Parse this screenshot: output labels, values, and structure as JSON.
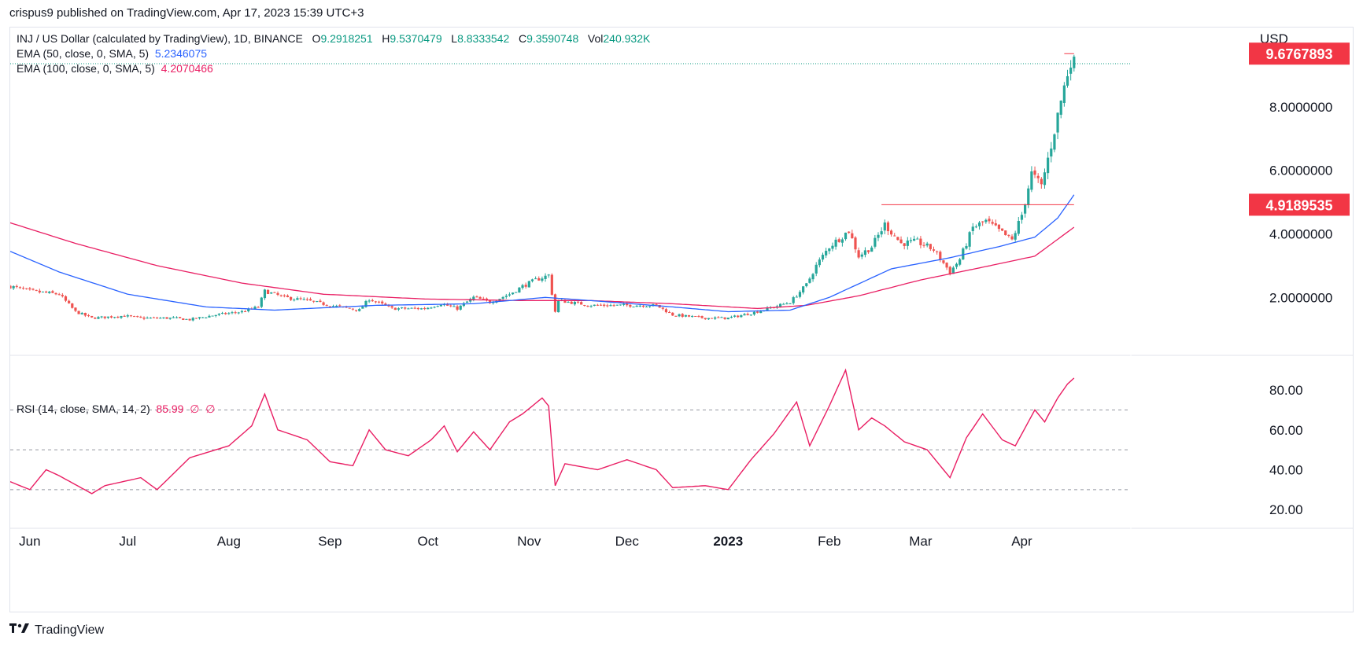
{
  "header": {
    "text": "crispus9 published on TradingView.com, Apr 17, 2023 15:39 UTC+3"
  },
  "footer": {
    "brand": "TradingView"
  },
  "main_legend": {
    "symbol": "INJ / US Dollar (calculated by TradingView), 1D, BINANCE",
    "o_label": "O",
    "o": "9.2918251",
    "h_label": "H",
    "h": "9.5370479",
    "l_label": "L",
    "l": "8.8333542",
    "c_label": "C",
    "c": "9.3590748",
    "vol_label": "Vol",
    "vol": "240.932K"
  },
  "ema50_legend": {
    "label": "EMA (50, close, 0, SMA, 5)",
    "value": "5.2346075"
  },
  "ema100_legend": {
    "label": "EMA (100, close, 0, SMA, 5)",
    "value": "4.2070466"
  },
  "rsi_legend": {
    "label": "RSI (14, close, SMA, 14, 2)",
    "value": "85.99",
    "extra1": "∅",
    "extra2": "∅"
  },
  "colors": {
    "up": "#26a69a",
    "down": "#ef5350",
    "ema50": "#2962ff",
    "ema100": "#e91e63",
    "rsi": "#e91e63",
    "label_bg": "#f23645",
    "guide": "#f23645"
  },
  "chart_data": [
    {
      "type": "candlestick",
      "title": "INJ / US Dollar (calculated by TradingView), 1D, BINANCE",
      "y_axis_label": "USD",
      "y_ticks": [
        "2.0000000",
        "4.0000000",
        "6.0000000",
        "8.0000000"
      ],
      "y_tick_values": [
        2,
        4,
        6,
        8
      ],
      "ylim": [
        0.2,
        10.5
      ],
      "x_ticks": [
        "Jun",
        "Jul",
        "Aug",
        "Sep",
        "Oct",
        "Nov",
        "Dec",
        "2023",
        "Feb",
        "Mar",
        "Apr"
      ],
      "x_tick_dates": [
        "2022-06-01",
        "2022-07-01",
        "2022-08-01",
        "2022-09-01",
        "2022-10-01",
        "2022-11-01",
        "2022-12-01",
        "2023-01-01",
        "2023-02-01",
        "2023-03-01",
        "2023-04-01"
      ],
      "x_range": [
        "2022-05-26",
        "2023-05-02"
      ],
      "price_labels": [
        {
          "text": "9.6767893",
          "value": 9.6767893
        },
        {
          "text": "4.9189535",
          "value": 4.9189535
        }
      ],
      "resistance_line": {
        "from": "2023-02-17",
        "to": "2023-04-17",
        "value": 4.9189535
      },
      "peak_line": {
        "from": "2023-04-14",
        "to": "2023-04-17",
        "value": 9.6767893
      },
      "close_keypoints": [
        [
          "2022-05-26",
          2.35
        ],
        [
          "2022-06-01",
          2.2
        ],
        [
          "2022-06-10",
          2.1
        ],
        [
          "2022-06-15",
          1.55
        ],
        [
          "2022-06-20",
          1.35
        ],
        [
          "2022-06-30",
          1.42
        ],
        [
          "2022-07-05",
          1.35
        ],
        [
          "2022-07-15",
          1.35
        ],
        [
          "2022-07-20",
          1.3
        ],
        [
          "2022-07-28",
          1.45
        ],
        [
          "2022-08-05",
          1.55
        ],
        [
          "2022-08-10",
          1.7
        ],
        [
          "2022-08-12",
          2.2
        ],
        [
          "2022-08-18",
          2.0
        ],
        [
          "2022-08-25",
          1.9
        ],
        [
          "2022-09-01",
          1.75
        ],
        [
          "2022-09-10",
          1.6
        ],
        [
          "2022-09-13",
          1.95
        ],
        [
          "2022-09-20",
          1.65
        ],
        [
          "2022-09-30",
          1.65
        ],
        [
          "2022-10-05",
          1.8
        ],
        [
          "2022-10-10",
          1.65
        ],
        [
          "2022-10-15",
          2.0
        ],
        [
          "2022-10-20",
          1.85
        ],
        [
          "2022-10-26",
          2.1
        ],
        [
          "2022-10-30",
          2.35
        ],
        [
          "2022-11-03",
          2.55
        ],
        [
          "2022-11-07",
          2.7
        ],
        [
          "2022-11-09",
          1.55
        ],
        [
          "2022-11-10",
          1.9
        ],
        [
          "2022-11-20",
          1.75
        ],
        [
          "2022-11-28",
          1.75
        ],
        [
          "2022-12-10",
          1.75
        ],
        [
          "2022-12-15",
          1.45
        ],
        [
          "2022-12-25",
          1.35
        ],
        [
          "2023-01-01",
          1.35
        ],
        [
          "2023-01-08",
          1.5
        ],
        [
          "2023-01-15",
          1.7
        ],
        [
          "2023-01-20",
          1.85
        ],
        [
          "2023-01-25",
          2.4
        ],
        [
          "2023-01-28",
          3.0
        ],
        [
          "2023-02-01",
          3.6
        ],
        [
          "2023-02-07",
          4.1
        ],
        [
          "2023-02-10",
          3.3
        ],
        [
          "2023-02-14",
          3.6
        ],
        [
          "2023-02-18",
          4.3
        ],
        [
          "2023-02-23",
          3.7
        ],
        [
          "2023-02-28",
          3.75
        ],
        [
          "2023-03-05",
          3.5
        ],
        [
          "2023-03-10",
          2.8
        ],
        [
          "2023-03-13",
          3.2
        ],
        [
          "2023-03-17",
          4.2
        ],
        [
          "2023-03-21",
          4.4
        ],
        [
          "2023-03-25",
          4.1
        ],
        [
          "2023-03-29",
          3.8
        ],
        [
          "2023-04-01",
          4.6
        ],
        [
          "2023-04-04",
          5.9
        ],
        [
          "2023-04-07",
          5.5
        ],
        [
          "2023-04-10",
          6.8
        ],
        [
          "2023-04-13",
          8.2
        ],
        [
          "2023-04-16",
          9.5
        ],
        [
          "2023-04-17",
          9.36
        ]
      ],
      "ema50_keypoints": [
        [
          "2022-05-26",
          3.45
        ],
        [
          "2022-06-10",
          2.8
        ],
        [
          "2022-07-01",
          2.1
        ],
        [
          "2022-07-25",
          1.7
        ],
        [
          "2022-08-15",
          1.6
        ],
        [
          "2022-09-15",
          1.75
        ],
        [
          "2022-10-15",
          1.8
        ],
        [
          "2022-11-06",
          2.0
        ],
        [
          "2022-11-20",
          1.9
        ],
        [
          "2022-12-15",
          1.7
        ],
        [
          "2023-01-01",
          1.55
        ],
        [
          "2023-01-20",
          1.6
        ],
        [
          "2023-02-01",
          2.0
        ],
        [
          "2023-02-20",
          2.9
        ],
        [
          "2023-03-10",
          3.25
        ],
        [
          "2023-03-25",
          3.6
        ],
        [
          "2023-04-05",
          3.9
        ],
        [
          "2023-04-12",
          4.5
        ],
        [
          "2023-04-17",
          5.23
        ]
      ],
      "ema100_keypoints": [
        [
          "2022-05-26",
          4.35
        ],
        [
          "2022-06-15",
          3.7
        ],
        [
          "2022-07-10",
          3.0
        ],
        [
          "2022-08-05",
          2.45
        ],
        [
          "2022-08-30",
          2.1
        ],
        [
          "2022-09-30",
          1.95
        ],
        [
          "2022-10-30",
          1.9
        ],
        [
          "2022-11-20",
          1.9
        ],
        [
          "2022-12-15",
          1.8
        ],
        [
          "2023-01-10",
          1.65
        ],
        [
          "2023-01-25",
          1.75
        ],
        [
          "2023-02-10",
          2.05
        ],
        [
          "2023-03-01",
          2.55
        ],
        [
          "2023-03-20",
          2.95
        ],
        [
          "2023-04-05",
          3.3
        ],
        [
          "2023-04-17",
          4.21
        ]
      ]
    },
    {
      "type": "line",
      "title": "RSI (14, close, SMA, 14, 2)",
      "y_ticks": [
        "20.00",
        "40.00",
        "60.00",
        "80.00"
      ],
      "y_tick_values": [
        20,
        40,
        60,
        80
      ],
      "ylim": [
        11,
        97
      ],
      "bands": [
        30,
        50,
        70
      ],
      "series": [
        {
          "name": "RSI",
          "keypoints": [
            [
              "2022-05-26",
              34
            ],
            [
              "2022-06-01",
              30
            ],
            [
              "2022-06-06",
              40
            ],
            [
              "2022-06-10",
              37
            ],
            [
              "2022-06-20",
              28
            ],
            [
              "2022-06-24",
              32
            ],
            [
              "2022-07-05",
              36
            ],
            [
              "2022-07-10",
              30
            ],
            [
              "2022-07-20",
              46
            ],
            [
              "2022-08-01",
              52
            ],
            [
              "2022-08-08",
              62
            ],
            [
              "2022-08-12",
              78
            ],
            [
              "2022-08-16",
              60
            ],
            [
              "2022-08-25",
              55
            ],
            [
              "2022-09-01",
              44
            ],
            [
              "2022-09-08",
              42
            ],
            [
              "2022-09-13",
              60
            ],
            [
              "2022-09-18",
              50
            ],
            [
              "2022-09-25",
              47
            ],
            [
              "2022-10-02",
              55
            ],
            [
              "2022-10-06",
              62
            ],
            [
              "2022-10-10",
              49
            ],
            [
              "2022-10-15",
              59
            ],
            [
              "2022-10-20",
              50
            ],
            [
              "2022-10-26",
              64
            ],
            [
              "2022-10-30",
              68
            ],
            [
              "2022-11-05",
              76
            ],
            [
              "2022-11-07",
              72
            ],
            [
              "2022-11-09",
              32
            ],
            [
              "2022-11-12",
              43
            ],
            [
              "2022-11-22",
              40
            ],
            [
              "2022-12-01",
              45
            ],
            [
              "2022-12-10",
              40
            ],
            [
              "2022-12-15",
              31
            ],
            [
              "2022-12-25",
              32
            ],
            [
              "2023-01-01",
              30
            ],
            [
              "2023-01-08",
              45
            ],
            [
              "2023-01-15",
              58
            ],
            [
              "2023-01-22",
              74
            ],
            [
              "2023-01-26",
              52
            ],
            [
              "2023-02-01",
              72
            ],
            [
              "2023-02-06",
              90
            ],
            [
              "2023-02-10",
              60
            ],
            [
              "2023-02-14",
              66
            ],
            [
              "2023-02-18",
              62
            ],
            [
              "2023-02-24",
              54
            ],
            [
              "2023-03-03",
              50
            ],
            [
              "2023-03-10",
              36
            ],
            [
              "2023-03-15",
              56
            ],
            [
              "2023-03-20",
              68
            ],
            [
              "2023-03-26",
              55
            ],
            [
              "2023-03-30",
              52
            ],
            [
              "2023-04-05",
              70
            ],
            [
              "2023-04-08",
              64
            ],
            [
              "2023-04-12",
              76
            ],
            [
              "2023-04-15",
              83
            ],
            [
              "2023-04-17",
              86
            ]
          ]
        }
      ]
    }
  ]
}
